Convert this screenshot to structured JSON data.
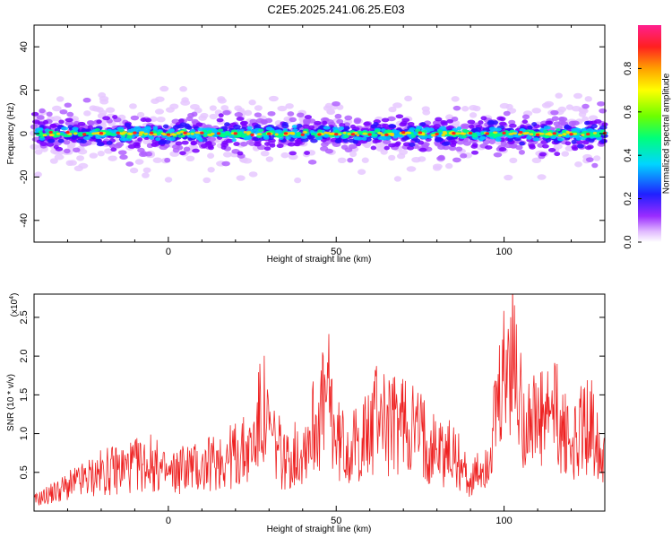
{
  "title": "C2E5.2025.241.06.25.E03",
  "chart_data": [
    {
      "type": "heatmap",
      "xlabel": "Height of straight line (km)",
      "ylabel": "Frequency (Hz)",
      "xlim": [
        -40,
        130
      ],
      "ylim": [
        -50,
        50
      ],
      "xticks": [
        0,
        50,
        100
      ],
      "yticks": [
        -40,
        -20,
        0,
        20,
        40
      ],
      "colorbar": {
        "label": "Normalized spectral amplitude",
        "range": [
          0,
          1
        ],
        "ticks": [
          "0.0",
          "0.2",
          "0.4",
          "0.6",
          "0.8"
        ],
        "tick_values": [
          0,
          0.2,
          0.4,
          0.6,
          0.8
        ]
      },
      "band_center_hz": 0,
      "band_halfwidth_hz": 5,
      "high_amplitude_x": [
        -35,
        -30,
        -25,
        -20,
        -15,
        -10,
        -5,
        0,
        5,
        10,
        15,
        20,
        25,
        30,
        35,
        40,
        45,
        50,
        55,
        60,
        65,
        70,
        75,
        80,
        85,
        90,
        95,
        100,
        105,
        110,
        115,
        120,
        125,
        130
      ]
    },
    {
      "type": "line",
      "xlabel": "Height of straight line (km)",
      "ylabel": "SNR (10 * v/v)",
      "y_multiplier": "(x10",
      "y_multiplier_exp": "4",
      "y_multiplier_close": ")",
      "xlim": [
        -40,
        130
      ],
      "ylim": [
        0,
        28000
      ],
      "xticks": [
        0,
        50,
        100
      ],
      "yticks": [
        5000,
        10000,
        15000,
        20000,
        25000
      ],
      "ytick_labels": [
        "0.5",
        "1.0",
        "1.5",
        "2.0",
        "2.5"
      ],
      "color": "#ee2222",
      "series": [
        {
          "x": [
            -40,
            -35,
            -30,
            -25,
            -20,
            -15,
            -10,
            -5,
            0,
            5,
            10,
            15,
            20,
            25,
            28,
            30,
            35,
            40,
            45,
            48,
            50,
            55,
            60,
            63,
            65,
            70,
            75,
            80,
            85,
            88,
            90,
            95,
            100,
            102,
            105,
            110,
            115,
            120,
            125,
            130
          ],
          "values": [
            1500,
            2500,
            3500,
            4500,
            5500,
            6000,
            6500,
            7000,
            5000,
            6500,
            6000,
            7500,
            8000,
            9000,
            15000,
            11000,
            7000,
            9000,
            14000,
            16000,
            10000,
            9000,
            11000,
            16000,
            12000,
            13000,
            11000,
            9000,
            8000,
            6000,
            4000,
            7000,
            18000,
            23000,
            15000,
            12000,
            14000,
            9000,
            13000,
            9000
          ]
        }
      ]
    }
  ]
}
